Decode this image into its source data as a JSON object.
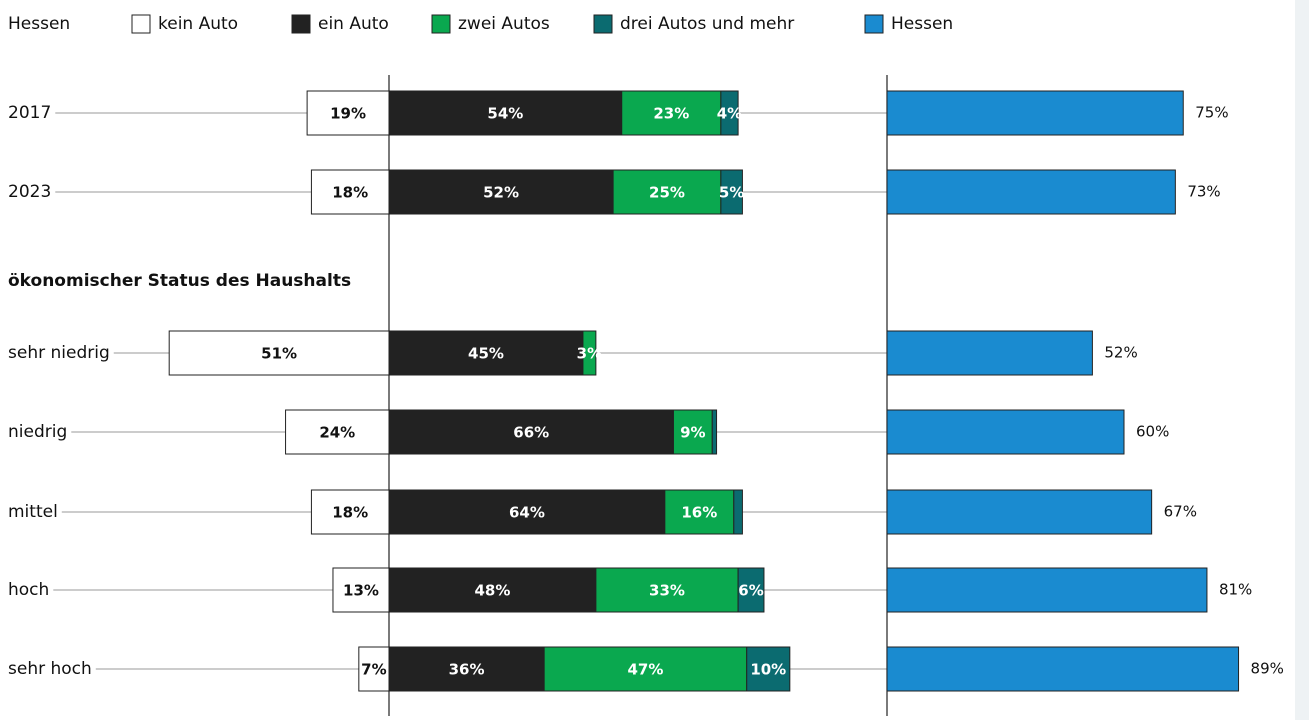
{
  "chart_data": [
    {
      "type": "diverging-stacked-bar",
      "legend_title": "Hessen",
      "subheading": "ökonomischer Status des Haushalts",
      "categories": [
        "2017",
        "2023",
        "sehr niedrig",
        "niedrig",
        "mittel",
        "hoch",
        "sehr hoch"
      ],
      "xlim": [
        -55,
        100
      ],
      "series": [
        {
          "name": "kein Auto",
          "color": "#ffffff",
          "direction": "left",
          "values": [
            19,
            18,
            51,
            24,
            18,
            13,
            7
          ],
          "value_labels": [
            "19%",
            "18%",
            "51%",
            "24%",
            "18%",
            "13%",
            "7%"
          ]
        },
        {
          "name": "ein Auto",
          "color": "#222222",
          "values": [
            54,
            52,
            45,
            66,
            64,
            48,
            36
          ],
          "value_labels": [
            "54%",
            "52%",
            "45%",
            "66%",
            "64%",
            "48%",
            "36%"
          ]
        },
        {
          "name": "zwei Autos",
          "color": "#0aa84f",
          "values": [
            23,
            25,
            3,
            9,
            16,
            33,
            47
          ],
          "value_labels": [
            "23%",
            "25%",
            "3%",
            "9%",
            "16%",
            "33%",
            "47%"
          ]
        },
        {
          "name": "drei Autos und mehr",
          "color": "#0b6b70",
          "values": [
            4,
            5,
            null,
            1,
            2,
            6,
            10
          ],
          "value_labels": [
            "4%",
            "5%",
            null,
            null,
            null,
            "6%",
            "10%"
          ]
        }
      ]
    },
    {
      "type": "bar",
      "xlim": [
        0,
        100
      ],
      "series": [
        {
          "name": "Hessen",
          "color": "#1a8bd0",
          "values": [
            75,
            73,
            52,
            60,
            67,
            81,
            89
          ],
          "value_labels": [
            "75%",
            "73%",
            "52%",
            "60%",
            "67%",
            "81%",
            "89%"
          ]
        }
      ]
    }
  ]
}
